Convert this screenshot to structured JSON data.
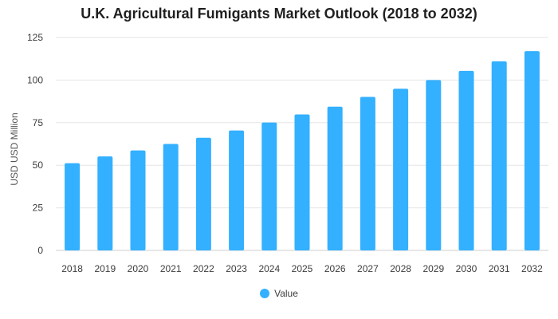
{
  "chart_data": {
    "type": "bar",
    "title": "U.K. Agricultural Fumigants Market Outlook (2018 to 2032)",
    "xlabel": "",
    "ylabel": "USD USD Million",
    "categories": [
      "2018",
      "2019",
      "2020",
      "2021",
      "2022",
      "2023",
      "2024",
      "2025",
      "2026",
      "2027",
      "2028",
      "2029",
      "2030",
      "2031",
      "2032"
    ],
    "series": [
      {
        "name": "Value",
        "values": [
          51.2,
          55.2,
          58.7,
          62.5,
          66.1,
          70.4,
          75.1,
          79.8,
          84.4,
          90.1,
          94.9,
          100.0,
          105.4,
          111.0,
          117.0
        ]
      }
    ],
    "ylim": [
      0,
      125
    ],
    "yticks": [
      "0",
      "25",
      "50",
      "75",
      "100",
      "125"
    ],
    "grid": true,
    "legend_position": "bottom",
    "colors": {
      "bar": "#33b0ff",
      "grid": "#e6e6e6",
      "axis": "#cfcfcf"
    }
  }
}
